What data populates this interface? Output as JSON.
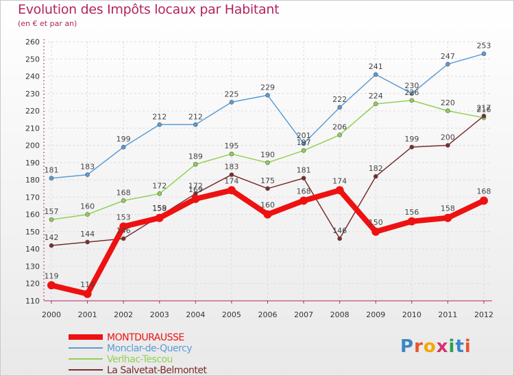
{
  "title": "Evolution des Impôts locaux par Habitant",
  "subtitle": "(en € et par an)",
  "logo": {
    "text": "Proxiti",
    "colors": [
      "#3a86c8",
      "#e4572e",
      "#f2a900",
      "#d6336c",
      "#2e9e4f",
      "#3a86c8",
      "#e4572e"
    ]
  },
  "chart_data": {
    "type": "line",
    "title": "Evolution des Impôts locaux par Habitant",
    "subtitle": "(en € et par an)",
    "x": [
      "2000",
      "2001",
      "2002",
      "2003",
      "2004",
      "2005",
      "2006",
      "2007",
      "2008",
      "2009",
      "2010",
      "2011",
      "2012"
    ],
    "ylim": [
      110,
      260
    ],
    "yticks": [
      110,
      120,
      130,
      140,
      150,
      160,
      170,
      180,
      190,
      200,
      210,
      220,
      230,
      240,
      250,
      260
    ],
    "grid": true,
    "legend_position": "bottom-left",
    "series": [
      {
        "name": "MONTDURAUSSE",
        "color": "#ee1111",
        "width": "thick",
        "values": [
          119,
          114,
          153,
          158,
          169,
          174,
          160,
          168,
          174,
          150,
          156,
          158,
          168
        ],
        "labels": [
          "119",
          "114",
          "153",
          "158",
          "169",
          "174",
          "160",
          "168",
          "174",
          "150",
          "156",
          "158",
          "168"
        ]
      },
      {
        "name": "Monclar-de-Quercy",
        "color": "#5b9bd5",
        "width": "thin",
        "values": [
          181,
          183,
          199,
          212,
          212,
          225,
          229,
          201,
          222,
          241,
          230,
          247,
          253
        ],
        "labels": [
          "181",
          "183",
          "199",
          "212",
          "212",
          "225",
          "229",
          "201",
          "222",
          "241",
          "230",
          "247",
          "253"
        ]
      },
      {
        "name": "Verlhac-Tescou",
        "color": "#92d050",
        "width": "thin",
        "values": [
          157,
          160,
          168,
          172,
          189,
          195,
          190,
          197,
          206,
          224,
          226,
          220,
          216
        ],
        "labels": [
          "157",
          "160",
          "168",
          "172",
          "189",
          "195",
          "190",
          "197",
          "206",
          "224",
          "226",
          "220",
          "216"
        ]
      },
      {
        "name": "La Salvetat-Belmontet",
        "color": "#7b2c2c",
        "width": "thin",
        "values": [
          142,
          144,
          146,
          159,
          172,
          183,
          175,
          181,
          146,
          182,
          199,
          200,
          217
        ],
        "labels": [
          "142",
          "144",
          "146",
          "159",
          "172",
          "183",
          "175",
          "181",
          "146",
          "182",
          "199",
          "200",
          "217"
        ]
      }
    ]
  }
}
